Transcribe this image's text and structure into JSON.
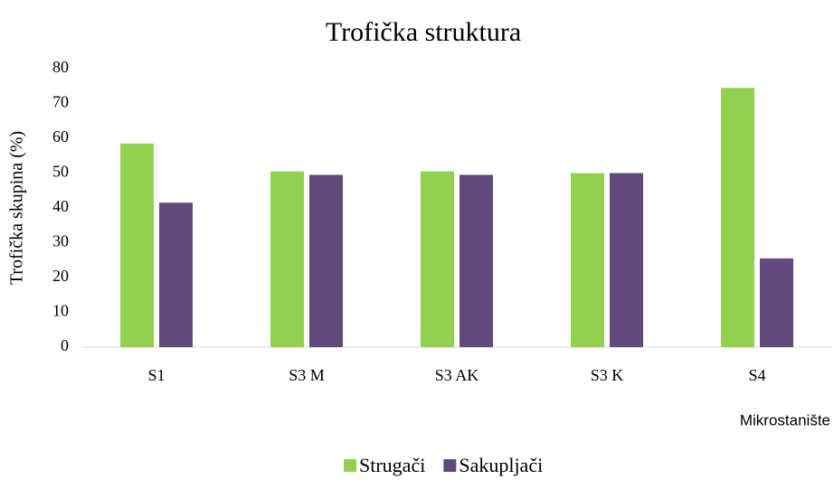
{
  "chart_data": {
    "type": "bar",
    "title": "Trofička struktura",
    "y_label": "Trofička skupina (%)",
    "x_label": "Mikrostanište",
    "categories": [
      "S1",
      "S3 M",
      "S3 AK",
      "S3 K",
      "S4"
    ],
    "series": [
      {
        "name": "Strugači",
        "color": "#92d050",
        "values": [
          58.5,
          50.5,
          50.5,
          50,
          74.5
        ]
      },
      {
        "name": "Sakupljači",
        "color": "#604a7b",
        "values": [
          41.5,
          49.5,
          49.5,
          50,
          25.5
        ]
      }
    ],
    "ylim": [
      0,
      80
    ],
    "yticks": [
      0,
      10,
      20,
      30,
      40,
      50,
      60,
      70,
      80
    ],
    "grid": false,
    "legend": "bottom"
  }
}
